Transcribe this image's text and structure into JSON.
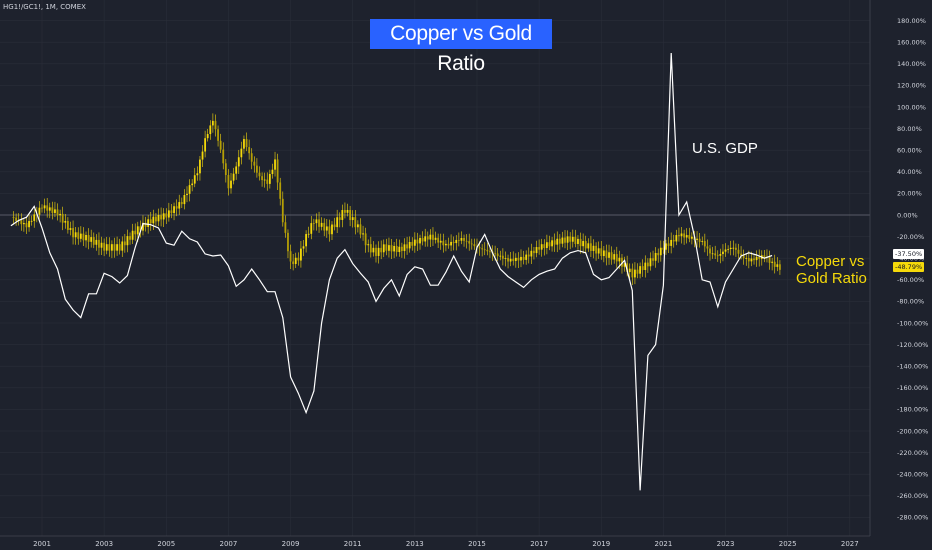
{
  "header": {
    "symbol": "HG1!/GC1!, 1M, COMEX"
  },
  "chart_data": {
    "type": "line",
    "title": "Copper vs Gold Ratio",
    "xlabel": "",
    "ylabel": "",
    "x_ticks": [
      "2001",
      "2003",
      "2005",
      "2007",
      "2009",
      "2011",
      "2013",
      "2015",
      "2017",
      "2019",
      "2021",
      "2023",
      "2025",
      "2027"
    ],
    "xlim": [
      2000.0,
      2028.6
    ],
    "y_ticks": [
      "180.00%",
      "160.00%",
      "140.00%",
      "120.00%",
      "100.00%",
      "80.00%",
      "60.00%",
      "40.00%",
      "20.00%",
      "0.00%",
      "-20.00%",
      "-40.00%",
      "-60.00%",
      "-80.00%",
      "-100.00%",
      "-120.00%",
      "-140.00%",
      "-160.00%",
      "-180.00%",
      "-200.00%",
      "-220.00%",
      "-240.00%",
      "-260.00%",
      "-280.00%"
    ],
    "ylim": [
      -288,
      194
    ],
    "baseline": 0,
    "series": [
      {
        "name": "U.S. GDP",
        "color": "#ffffff",
        "last_value_label": "-37.50%",
        "points": [
          [
            2000.0,
            -10
          ],
          [
            2000.25,
            -5
          ],
          [
            2000.5,
            -2
          ],
          [
            2000.75,
            8
          ],
          [
            2001.0,
            -12
          ],
          [
            2001.25,
            -35
          ],
          [
            2001.5,
            -50
          ],
          [
            2001.75,
            -78
          ],
          [
            2002.0,
            -88
          ],
          [
            2002.25,
            -95
          ],
          [
            2002.5,
            -73
          ],
          [
            2002.75,
            -73
          ],
          [
            2003.0,
            -54
          ],
          [
            2003.25,
            -57
          ],
          [
            2003.5,
            -63
          ],
          [
            2003.75,
            -56
          ],
          [
            2004.0,
            -30
          ],
          [
            2004.25,
            -8
          ],
          [
            2004.5,
            -9
          ],
          [
            2004.75,
            -12
          ],
          [
            2005.0,
            -26
          ],
          [
            2005.25,
            -28
          ],
          [
            2005.5,
            -15
          ],
          [
            2005.75,
            -22
          ],
          [
            2006.0,
            -25
          ],
          [
            2006.25,
            -36
          ],
          [
            2006.5,
            -38
          ],
          [
            2006.75,
            -37
          ],
          [
            2007.0,
            -47
          ],
          [
            2007.25,
            -66
          ],
          [
            2007.5,
            -60
          ],
          [
            2007.75,
            -50
          ],
          [
            2008.0,
            -60
          ],
          [
            2008.25,
            -71
          ],
          [
            2008.5,
            -71
          ],
          [
            2008.75,
            -95
          ],
          [
            2009.0,
            -150
          ],
          [
            2009.25,
            -165
          ],
          [
            2009.5,
            -183
          ],
          [
            2009.75,
            -163
          ],
          [
            2010.0,
            -100
          ],
          [
            2010.25,
            -60
          ],
          [
            2010.5,
            -40
          ],
          [
            2010.75,
            -32
          ],
          [
            2011.0,
            -45
          ],
          [
            2011.25,
            -54
          ],
          [
            2011.5,
            -62
          ],
          [
            2011.75,
            -80
          ],
          [
            2012.0,
            -68
          ],
          [
            2012.25,
            -60
          ],
          [
            2012.5,
            -75
          ],
          [
            2012.75,
            -55
          ],
          [
            2013.0,
            -48
          ],
          [
            2013.25,
            -50
          ],
          [
            2013.5,
            -65
          ],
          [
            2013.75,
            -65
          ],
          [
            2014.0,
            -53
          ],
          [
            2014.25,
            -38
          ],
          [
            2014.5,
            -52
          ],
          [
            2014.75,
            -62
          ],
          [
            2015.0,
            -30
          ],
          [
            2015.25,
            -18
          ],
          [
            2015.5,
            -35
          ],
          [
            2015.75,
            -50
          ],
          [
            2016.0,
            -57
          ],
          [
            2016.25,
            -62
          ],
          [
            2016.5,
            -67
          ],
          [
            2016.75,
            -60
          ],
          [
            2017.0,
            -55
          ],
          [
            2017.25,
            -52
          ],
          [
            2017.5,
            -50
          ],
          [
            2017.75,
            -40
          ],
          [
            2018.0,
            -35
          ],
          [
            2018.25,
            -33
          ],
          [
            2018.5,
            -35
          ],
          [
            2018.75,
            -55
          ],
          [
            2019.0,
            -60
          ],
          [
            2019.25,
            -58
          ],
          [
            2019.5,
            -50
          ],
          [
            2019.75,
            -42
          ],
          [
            2020.0,
            -70
          ],
          [
            2020.25,
            -255
          ],
          [
            2020.5,
            -130
          ],
          [
            2020.75,
            -120
          ],
          [
            2021.0,
            -65
          ],
          [
            2021.25,
            150
          ],
          [
            2021.5,
            0
          ],
          [
            2021.75,
            12
          ],
          [
            2022.0,
            -20
          ],
          [
            2022.25,
            -60
          ],
          [
            2022.5,
            -62
          ],
          [
            2022.75,
            -85
          ],
          [
            2023.0,
            -62
          ],
          [
            2023.25,
            -50
          ],
          [
            2023.5,
            -38
          ],
          [
            2023.75,
            -35
          ],
          [
            2024.0,
            -37
          ],
          [
            2024.25,
            -40
          ],
          [
            2024.5,
            -37.5
          ]
        ]
      },
      {
        "name": "Copper vs Gold Ratio",
        "color": "#f5d90a",
        "last_value_label": "-48.79%",
        "points": [
          [
            2000.0,
            -2
          ],
          [
            2000.5,
            -10
          ],
          [
            2001.0,
            8
          ],
          [
            2001.5,
            2
          ],
          [
            2002.0,
            -18
          ],
          [
            2002.5,
            -22
          ],
          [
            2003.0,
            -30
          ],
          [
            2003.5,
            -30
          ],
          [
            2004.0,
            -15
          ],
          [
            2004.5,
            -5
          ],
          [
            2005.0,
            0
          ],
          [
            2005.5,
            12
          ],
          [
            2006.0,
            40
          ],
          [
            2006.25,
            70
          ],
          [
            2006.5,
            88
          ],
          [
            2006.75,
            60
          ],
          [
            2007.0,
            25
          ],
          [
            2007.25,
            45
          ],
          [
            2007.5,
            70
          ],
          [
            2007.75,
            50
          ],
          [
            2008.0,
            35
          ],
          [
            2008.25,
            30
          ],
          [
            2008.5,
            50
          ],
          [
            2008.75,
            -5
          ],
          [
            2009.0,
            -45
          ],
          [
            2009.25,
            -40
          ],
          [
            2009.5,
            -20
          ],
          [
            2009.75,
            -5
          ],
          [
            2010.0,
            -10
          ],
          [
            2010.25,
            -15
          ],
          [
            2010.5,
            -5
          ],
          [
            2010.75,
            5
          ],
          [
            2011.0,
            -5
          ],
          [
            2011.25,
            -15
          ],
          [
            2011.5,
            -30
          ],
          [
            2011.75,
            -35
          ],
          [
            2012.0,
            -30
          ],
          [
            2012.5,
            -32
          ],
          [
            2013.0,
            -25
          ],
          [
            2013.5,
            -20
          ],
          [
            2014.0,
            -28
          ],
          [
            2014.5,
            -22
          ],
          [
            2015.0,
            -30
          ],
          [
            2015.5,
            -35
          ],
          [
            2016.0,
            -42
          ],
          [
            2016.5,
            -40
          ],
          [
            2017.0,
            -30
          ],
          [
            2017.5,
            -25
          ],
          [
            2018.0,
            -22
          ],
          [
            2018.5,
            -28
          ],
          [
            2019.0,
            -35
          ],
          [
            2019.5,
            -40
          ],
          [
            2020.0,
            -55
          ],
          [
            2020.5,
            -45
          ],
          [
            2021.0,
            -30
          ],
          [
            2021.25,
            -25
          ],
          [
            2021.5,
            -18
          ],
          [
            2021.75,
            -20
          ],
          [
            2022.0,
            -22
          ],
          [
            2022.25,
            -25
          ],
          [
            2022.5,
            -35
          ],
          [
            2022.75,
            -38
          ],
          [
            2023.0,
            -32
          ],
          [
            2023.25,
            -30
          ],
          [
            2023.5,
            -38
          ],
          [
            2023.75,
            -42
          ],
          [
            2024.0,
            -40
          ],
          [
            2024.25,
            -38
          ],
          [
            2024.5,
            -45
          ],
          [
            2024.75,
            -48.8
          ]
        ]
      }
    ],
    "annotations": [
      {
        "text": "U.S. GDP",
        "color": "#ffffff"
      },
      {
        "text": "Copper vs Gold Ratio",
        "color": "#f5d90a"
      }
    ],
    "grid": true,
    "legend": "none"
  }
}
